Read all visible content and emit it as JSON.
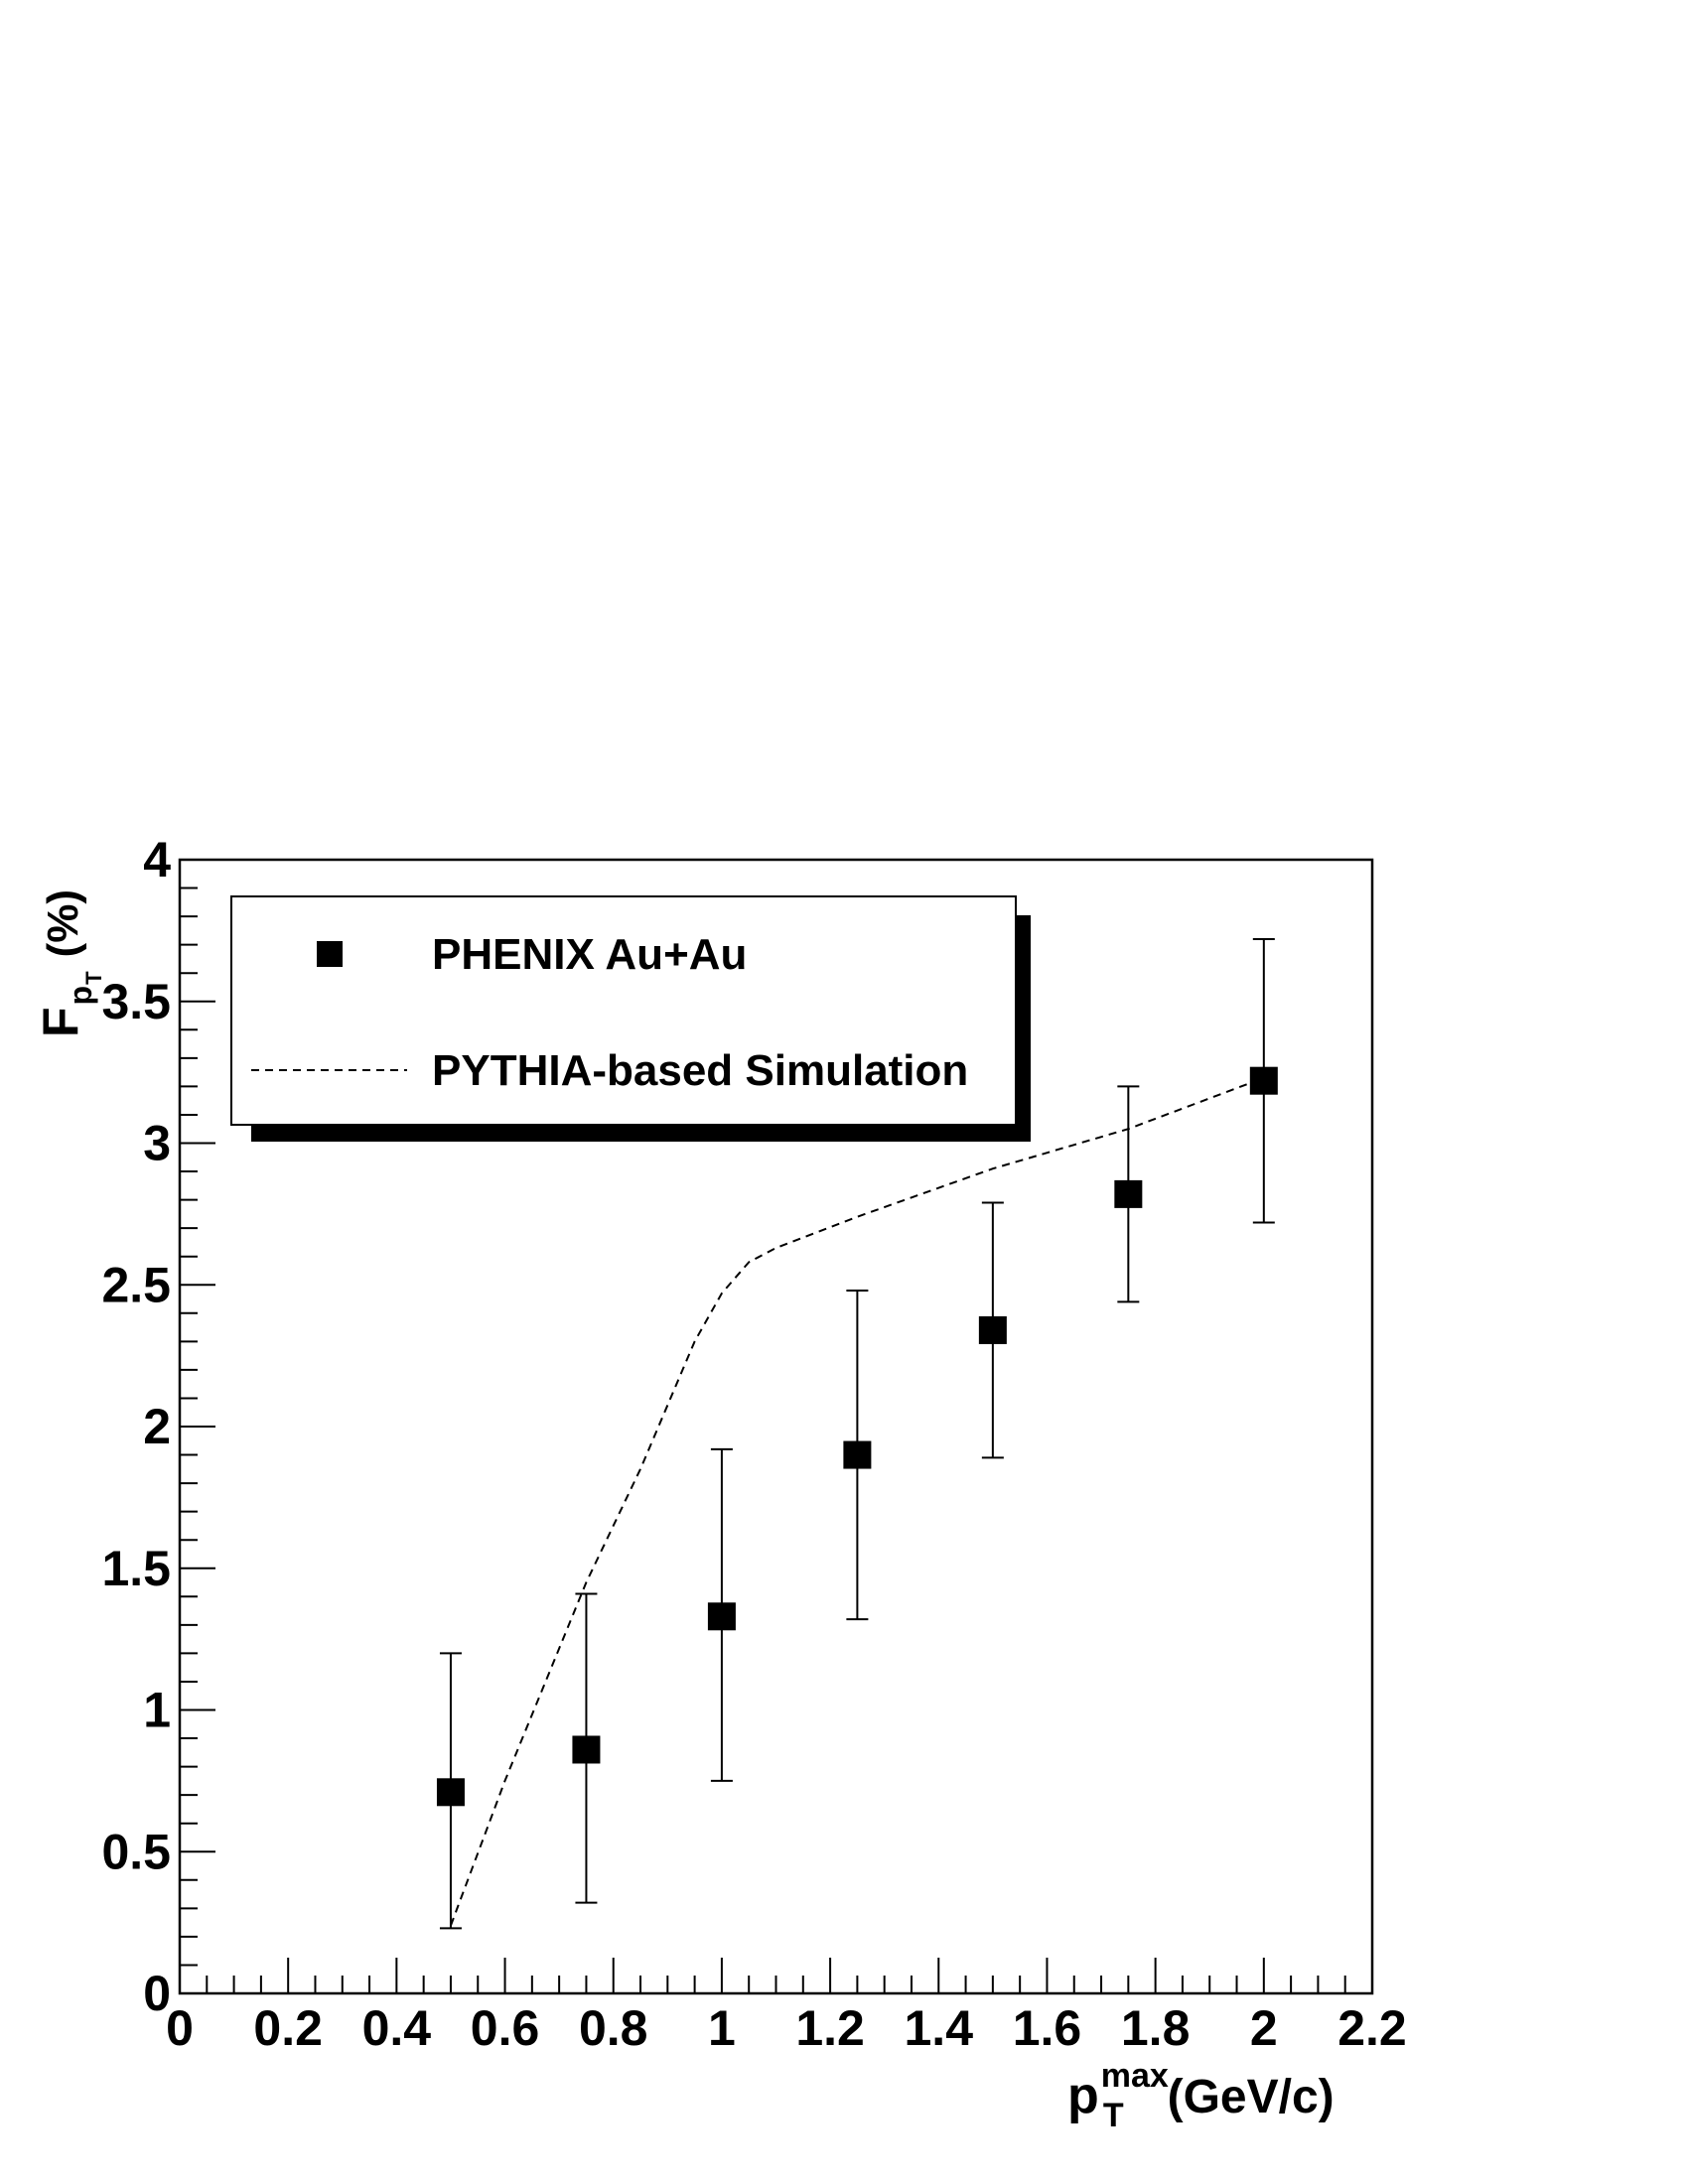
{
  "chart_data": {
    "type": "scatter",
    "xlabel": {
      "main": "p",
      "sub": "T",
      "sup": "max",
      "unit": "(GeV/c)"
    },
    "ylabel": {
      "main": "F",
      "sub": "p",
      "subsub": "T",
      "unit": "(%)"
    },
    "xlim": [
      0,
      2.2
    ],
    "ylim": [
      0,
      4
    ],
    "x_ticks": [
      "0",
      "0.2",
      "0.4",
      "0.6",
      "0.8",
      "1",
      "1.2",
      "1.4",
      "1.6",
      "1.8",
      "2",
      "2.2"
    ],
    "y_ticks": [
      "0",
      "0.5",
      "1",
      "1.5",
      "2",
      "2.5",
      "3",
      "3.5",
      "4"
    ],
    "grid": false,
    "legend_position": "top-left",
    "series": [
      {
        "name": "PHENIX Au+Au",
        "style": "square-markers-with-error-bars",
        "color": "#000000",
        "points": [
          {
            "x": 0.5,
            "y": 0.71,
            "err_low": 0.23,
            "err_high": 1.2
          },
          {
            "x": 0.75,
            "y": 0.86,
            "err_low": 0.32,
            "err_high": 1.41
          },
          {
            "x": 1.0,
            "y": 1.33,
            "err_low": 0.75,
            "err_high": 1.92
          },
          {
            "x": 1.25,
            "y": 1.9,
            "err_low": 1.32,
            "err_high": 2.48
          },
          {
            "x": 1.5,
            "y": 2.34,
            "err_low": 1.89,
            "err_high": 2.79
          },
          {
            "x": 1.75,
            "y": 2.82,
            "err_low": 2.44,
            "err_high": 3.2
          },
          {
            "x": 2.0,
            "y": 3.22,
            "err_low": 2.72,
            "err_high": 3.72
          }
        ]
      },
      {
        "name": "PYTHIA-based Simulation",
        "style": "dashed-line",
        "color": "#000000",
        "points": [
          {
            "x": 0.5,
            "y": 0.24
          },
          {
            "x": 0.6,
            "y": 0.75
          },
          {
            "x": 0.75,
            "y": 1.45
          },
          {
            "x": 0.85,
            "y": 1.85
          },
          {
            "x": 0.95,
            "y": 2.3
          },
          {
            "x": 1.0,
            "y": 2.47
          },
          {
            "x": 1.05,
            "y": 2.58
          },
          {
            "x": 1.1,
            "y": 2.63
          },
          {
            "x": 1.25,
            "y": 2.74
          },
          {
            "x": 1.5,
            "y": 2.91
          },
          {
            "x": 1.75,
            "y": 3.05
          },
          {
            "x": 2.0,
            "y": 3.23
          }
        ]
      }
    ]
  }
}
